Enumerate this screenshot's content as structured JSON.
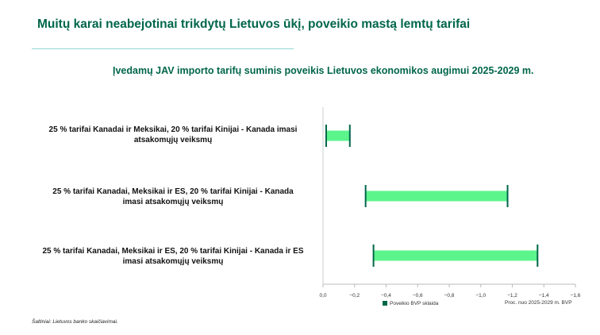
{
  "page": {
    "title": "Muitų karai neabejotinai trikdytų  Lietuvos ūkį, poveikio mastą lemtų tarifai",
    "source": "Šaltiniai: Lietuvos banko skaičiavimai."
  },
  "chart_data": {
    "type": "bar",
    "orientation": "horizontal-range",
    "title": "Įvedamų JAV importo tarifų suminis poveikis Lietuvos ekonomikos augimui 2025-2029 m.",
    "xlabel": "Proc. nuo 2025-2029 m. BVP",
    "categories": [
      [
        "25 % tarifai Kanadai ir Meksikai, 20 % tarifai Kinijai - Kanada imasi",
        "atsakomųjų veiksmų"
      ],
      [
        "25 % tarifai Kanadai, Meksikai ir ES, 20 % tarifai Kinijai - Kanada",
        "imasi atsakomųjų veiksmų"
      ],
      [
        "25 % tarifai Kanadai, Meksikai ir ES, 20 % tarifai Kinijai - Kanada ir ES",
        "imasi atsakomųjų veiksmų"
      ]
    ],
    "series": [
      {
        "name": "Poveikio BVP sklaida",
        "ranges": [
          [
            -0.02,
            -0.17
          ],
          [
            -0.27,
            -1.17
          ],
          [
            -0.32,
            -1.36
          ]
        ],
        "color": "#5cf58c",
        "whisker_color": "#00664a"
      }
    ],
    "xlim": [
      0,
      -1.6
    ],
    "xticks": [
      0,
      -0.2,
      -0.4,
      -0.6,
      -0.8,
      -1.0,
      -1.2,
      -1.4,
      -1.6
    ],
    "xtick_labels": [
      "0,0",
      "−0,2",
      "−0,4",
      "−0,6",
      "−0,8",
      "−1,0",
      "−1,2",
      "−1,4",
      "−1,6"
    ],
    "grid": false,
    "legend_position": "bottom-center"
  }
}
